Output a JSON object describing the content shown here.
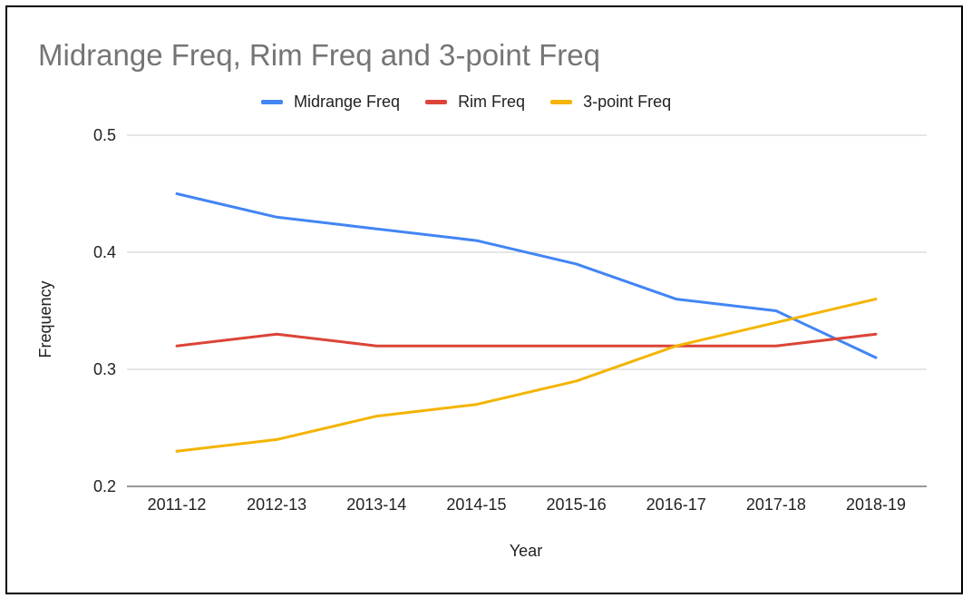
{
  "chart_data": {
    "type": "line",
    "title": "Midrange Freq, Rim Freq and 3-point Freq",
    "xlabel": "Year",
    "ylabel": "Frequency",
    "categories": [
      "2011-12",
      "2012-13",
      "2013-14",
      "2014-15",
      "2015-16",
      "2016-17",
      "2017-18",
      "2018-19"
    ],
    "ylim": [
      0.2,
      0.5
    ],
    "yticks": [
      "0.2",
      "0.3",
      "0.4",
      "0.5"
    ],
    "grid": true,
    "legend_position": "top",
    "series": [
      {
        "name": "Midrange Freq",
        "color": "#4285f4",
        "values": [
          0.45,
          0.43,
          0.42,
          0.41,
          0.39,
          0.36,
          0.35,
          0.31
        ]
      },
      {
        "name": "Rim Freq",
        "color": "#db4437",
        "values": [
          0.32,
          0.33,
          0.32,
          0.32,
          0.32,
          0.32,
          0.32,
          0.33
        ]
      },
      {
        "name": "3-point Freq",
        "color": "#f4b400",
        "values": [
          0.23,
          0.24,
          0.26,
          0.27,
          0.29,
          0.32,
          0.34,
          0.36
        ]
      }
    ]
  }
}
